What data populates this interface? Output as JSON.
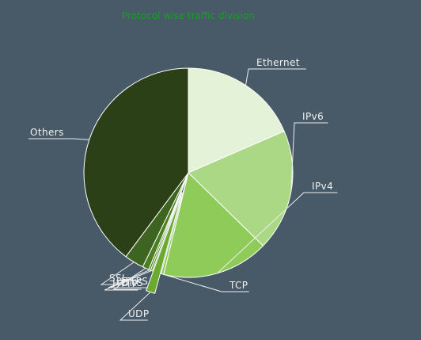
{
  "chart_data": {
    "type": "pie",
    "title": "Protocol wise traffic division",
    "categories": [
      "Ethernet",
      "IPv6",
      "IPv4",
      "TCP",
      "UDP",
      "HTTP",
      "HTTPS",
      "DNS",
      "SSL",
      "Others"
    ],
    "values": [
      18.5,
      18.8,
      16.5,
      0.4,
      1.4,
      0.3,
      0.3,
      1.0,
      3.0,
      39.8
    ],
    "exploded": [
      "UDP"
    ],
    "colors": [
      "#e4f2d8",
      "#aad884",
      "#8fcb59",
      "#8fcb59",
      "#6aab2f",
      "#5a9628",
      "#558a26",
      "#4b7f22",
      "#3e6421",
      "#2c4017"
    ],
    "legend": "none"
  }
}
